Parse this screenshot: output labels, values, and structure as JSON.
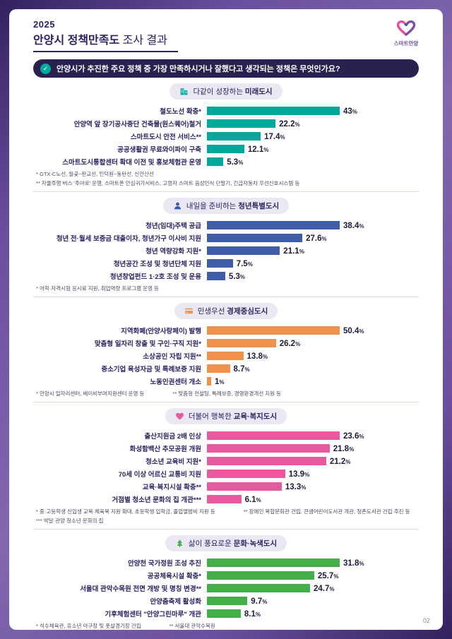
{
  "header": {
    "year": "2025",
    "title_bold": "안양시 정책만족도",
    "title_rest": " 조사 결과",
    "logo_text": "스마트안양",
    "check_glyph": "✓",
    "question": "안양시가 추진한 주요 정책 중 가장 만족하시거나 잘했다고 생각되는 정책은 무엇인가요?",
    "page_number": "02"
  },
  "colors": {
    "frame_purple": "#6b4fa0",
    "banner_navy": "#292250",
    "check_teal": "#00a99d",
    "title_navy": "#2b2263"
  },
  "chart_data": [
    {
      "type": "bar",
      "icon": "building-icon",
      "title_prefix": "다같이 성장하는 ",
      "title_bold": "미래도시",
      "color": "#00a79b",
      "unit": "%",
      "categories": [
        "철도노선 확충*",
        "안양역 앞 장기공사중단 건축물(원스퀘어)철거",
        "스마트도시 안전 서비스**",
        "공공생활권 무료와이파이 구축",
        "스마트도시통합센터 확대 이전 및 홍보체험관 운영"
      ],
      "values": [
        43,
        22.2,
        17.4,
        12.1,
        5.3
      ],
      "value_labels": [
        "43",
        "22.2",
        "17.4",
        "12.1",
        "5.3"
      ],
      "footnotes": [
        "* GTX-C노선, 월곶~판교선, 인덕원~동탄선, 신안산선",
        "** 자율주행 버스 '주야로' 운행, 스마트폰 안심귀가서비스, 고령자 스마트 음성인식 단말기, 긴급자동차 우선신호시스템 등"
      ]
    },
    {
      "type": "bar",
      "icon": "person-icon",
      "title_prefix": "내일을 준비하는 ",
      "title_bold": "청년특별도시",
      "color": "#3e5ca8",
      "unit": "%",
      "categories": [
        "청년(임대)주택 공급",
        "청년 전·월세 보증금 대출이자, 청년가구 이사비 지원",
        "청년 역량강화 지원*",
        "청년공간 조성 및 청년단체 지원",
        "청년창업펀드 1·2호 조성 및 운용"
      ],
      "values": [
        38.4,
        27.6,
        21.1,
        7.5,
        5.3
      ],
      "value_labels": [
        "38.4",
        "27.6",
        "21.1",
        "7.5",
        "5.3"
      ],
      "footnotes": [
        "* 어학·자격시험 응시료 지원, 취업역량 프로그램 운영 등"
      ]
    },
    {
      "type": "bar",
      "icon": "card-icon",
      "title_prefix": "민생우선 ",
      "title_bold": "경제중심도시",
      "color": "#f0924b",
      "unit": "%",
      "categories": [
        "지역화폐(안양사랑페이) 발행",
        "맞춤형 일자리 창출 및 구인·구직 지원*",
        "소상공인 자립 지원**",
        "중소기업 육성자금 및 특례보증 지원",
        "노동인권센터 개소"
      ],
      "values": [
        50.4,
        26.2,
        13.8,
        8.7,
        1
      ],
      "value_labels": [
        "50.4",
        "26.2",
        "13.8",
        "8.7",
        "1"
      ],
      "footnotes": [
        "* 안양시 일자리센터, 베이비부머지원센터 운영 등",
        "** 맞춤형 컨설팅, 특례보증, 경영환경개선 지원 등"
      ]
    },
    {
      "type": "bar",
      "icon": "heart-icon",
      "title_prefix": "더불어 행복한 ",
      "title_bold": "교육·복지도시",
      "color": "#e75a9e",
      "unit": "%",
      "categories": [
        "출산지원금 2배 인상",
        "화성함백산 추모공원 개원",
        "청소년 교육비 지원*",
        "70세 이상 어르신 교통비 지원",
        "교육·복지시설 확충**",
        "거점별 청소년 문화의 집 개관***"
      ],
      "values": [
        23.6,
        21.8,
        21.2,
        13.9,
        13.3,
        6.1
      ],
      "value_labels": [
        "23.6",
        "21.8",
        "21.2",
        "13.9",
        "13.3",
        "6.1"
      ],
      "footnotes": [
        "* 중·고등학생 신입생 교복·체육복 지원 확대, 초등학생 입학금, 졸업앨범비 지원 등",
        "** 장애인 복합문화관 건립, 큰샘어린이도서관 개관, 청촌도서관 건립 추진 등",
        "*** 박달·관양 청소년 문화의 집"
      ]
    },
    {
      "type": "bar",
      "icon": "tree-icon",
      "title_prefix": "삶이 풍요로운 ",
      "title_bold": "문화·녹색도시",
      "color": "#44ae49",
      "unit": "%",
      "categories": [
        "안양천 국가정원 조성 추진",
        "공공체육시설 확충*",
        "서울대 관악수목원 전면 개방 및 명칭 변경**",
        "안양춤축제 활성화",
        "기후체험센터 \"안양그린마루\" 개관"
      ],
      "values": [
        31.8,
        25.7,
        24.7,
        9.7,
        8.1
      ],
      "value_labels": [
        "31.8",
        "25.7",
        "24.7",
        "9.7",
        "8.1"
      ],
      "footnotes": [
        "* 석수체육관, 유소년 야구장 및 풋살경기장 건립",
        "** 서울대 관악수목원"
      ]
    }
  ]
}
